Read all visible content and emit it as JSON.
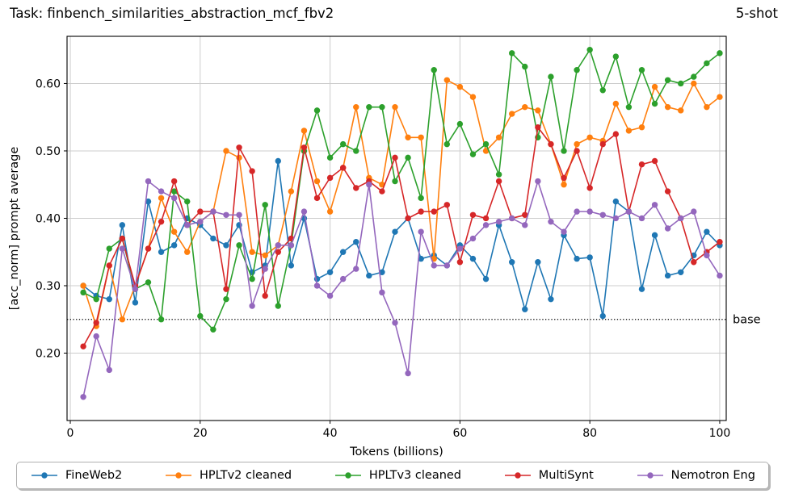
{
  "header": {
    "title": "Task: finbench_similarities_abstraction_mcf_fbv2",
    "shot": "5-shot"
  },
  "chart_data": {
    "type": "line",
    "title": "Task: finbench_similarities_abstraction_mcf_fbv2",
    "subtitle": "5-shot",
    "xlabel": "Tokens (billions)",
    "ylabel": "[acc_norm] prompt average",
    "xlim": [
      -0.5,
      101
    ],
    "ylim": [
      0.1,
      0.67
    ],
    "xticks": [
      0,
      20,
      40,
      60,
      80,
      100
    ],
    "yticks": [
      0.2,
      0.3,
      0.4,
      0.5,
      0.6
    ],
    "grid": true,
    "legend_position": "bottom",
    "baseline": {
      "value": 0.25,
      "label": "base"
    },
    "x": [
      2,
      4,
      6,
      8,
      10,
      12,
      14,
      16,
      18,
      20,
      22,
      24,
      26,
      28,
      30,
      32,
      34,
      36,
      38,
      40,
      42,
      44,
      46,
      48,
      50,
      52,
      54,
      56,
      58,
      60,
      62,
      64,
      66,
      68,
      70,
      72,
      74,
      76,
      78,
      80,
      82,
      84,
      86,
      88,
      90,
      92,
      94,
      96,
      98,
      100
    ],
    "series": [
      {
        "name": "FineWeb2",
        "color": "#1f77b4",
        "values": [
          0.3,
          0.285,
          0.28,
          0.39,
          0.275,
          0.425,
          0.35,
          0.36,
          0.4,
          0.39,
          0.37,
          0.36,
          0.39,
          0.32,
          0.33,
          0.485,
          0.33,
          0.4,
          0.31,
          0.32,
          0.35,
          0.365,
          0.315,
          0.32,
          0.38,
          0.4,
          0.34,
          0.345,
          0.33,
          0.36,
          0.34,
          0.31,
          0.39,
          0.335,
          0.265,
          0.335,
          0.28,
          0.375,
          0.34,
          0.342,
          0.255,
          0.425,
          0.41,
          0.295,
          0.375,
          0.315,
          0.32,
          0.345,
          0.38,
          0.36
        ]
      },
      {
        "name": "HPLTv2 cleaned",
        "color": "#ff7f0e",
        "values": [
          0.3,
          0.24,
          0.33,
          0.25,
          0.3,
          0.355,
          0.43,
          0.38,
          0.35,
          0.395,
          0.41,
          0.5,
          0.49,
          0.35,
          0.345,
          0.36,
          0.44,
          0.53,
          0.455,
          0.41,
          0.475,
          0.565,
          0.46,
          0.45,
          0.565,
          0.52,
          0.52,
          0.34,
          0.605,
          0.595,
          0.58,
          0.5,
          0.52,
          0.555,
          0.565,
          0.56,
          0.51,
          0.45,
          0.51,
          0.52,
          0.515,
          0.57,
          0.53,
          0.535,
          0.595,
          0.565,
          0.56,
          0.6,
          0.565,
          0.58
        ]
      },
      {
        "name": "HPLTv3 cleaned",
        "color": "#2ca02c",
        "values": [
          0.29,
          0.28,
          0.355,
          0.37,
          0.295,
          0.305,
          0.25,
          0.44,
          0.425,
          0.255,
          0.235,
          0.28,
          0.36,
          0.31,
          0.42,
          0.27,
          0.36,
          0.5,
          0.56,
          0.49,
          0.51,
          0.5,
          0.565,
          0.565,
          0.455,
          0.49,
          0.43,
          0.62,
          0.51,
          0.54,
          0.495,
          0.51,
          0.465,
          0.645,
          0.625,
          0.52,
          0.61,
          0.5,
          0.62,
          0.65,
          0.59,
          0.64,
          0.565,
          0.62,
          0.57,
          0.605,
          0.6,
          0.61,
          0.63,
          0.645
        ]
      },
      {
        "name": "MultiSynt",
        "color": "#d62728",
        "values": [
          0.21,
          0.245,
          0.33,
          0.37,
          0.3,
          0.355,
          0.395,
          0.455,
          0.39,
          0.41,
          0.41,
          0.295,
          0.505,
          0.47,
          0.285,
          0.35,
          0.37,
          0.505,
          0.43,
          0.46,
          0.475,
          0.445,
          0.455,
          0.44,
          0.49,
          0.4,
          0.41,
          0.41,
          0.42,
          0.335,
          0.405,
          0.4,
          0.455,
          0.4,
          0.405,
          0.535,
          0.51,
          0.46,
          0.5,
          0.445,
          0.51,
          0.525,
          0.41,
          0.48,
          0.485,
          0.44,
          0.4,
          0.335,
          0.35,
          0.365
        ]
      },
      {
        "name": "Nemotron Eng",
        "color": "#9467bd",
        "values": [
          0.135,
          0.225,
          0.175,
          0.355,
          0.295,
          0.455,
          0.44,
          0.43,
          0.39,
          0.395,
          0.41,
          0.405,
          0.405,
          0.27,
          0.325,
          0.36,
          0.36,
          0.41,
          0.3,
          0.285,
          0.31,
          0.325,
          0.45,
          0.29,
          0.245,
          0.17,
          0.38,
          0.33,
          0.33,
          0.355,
          0.37,
          0.39,
          0.395,
          0.4,
          0.39,
          0.455,
          0.395,
          0.38,
          0.41,
          0.41,
          0.405,
          0.4,
          0.41,
          0.4,
          0.42,
          0.385,
          0.4,
          0.41,
          0.345,
          0.315
        ]
      }
    ],
    "style": {
      "grid_color": "#cccccc",
      "spine_color": "#000000",
      "baseline_color": "#000000"
    }
  }
}
